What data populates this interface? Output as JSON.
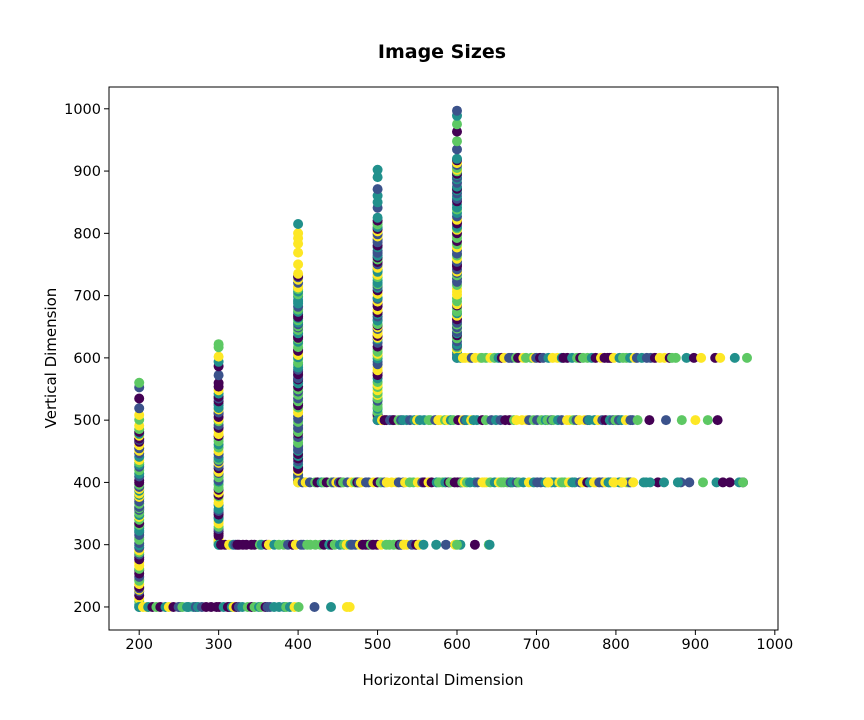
{
  "chart_data": {
    "type": "scatter",
    "title": "Image Sizes",
    "xlabel": "Horizontal Dimension",
    "ylabel": "Vertical Dimension",
    "xlim": [
      162,
      1004
    ],
    "ylim": [
      163,
      1035
    ],
    "xticks": [
      200,
      300,
      400,
      500,
      600,
      700,
      800,
      900,
      1000
    ],
    "yticks": [
      200,
      300,
      400,
      500,
      600,
      700,
      800,
      900,
      1000
    ],
    "grid": false,
    "legend": "none",
    "colormap": [
      "#440154",
      "#3b528b",
      "#21908c",
      "#5dc863",
      "#fde725"
    ],
    "groups": [
      {
        "base": 200,
        "vertical_max": 560,
        "horizontal_max": 465
      },
      {
        "base": 300,
        "vertical_max": 622,
        "horizontal_max": 640
      },
      {
        "base": 400,
        "vertical_max": 815,
        "horizontal_max": 960
      },
      {
        "base": 500,
        "vertical_max": 902,
        "horizontal_max": 928
      },
      {
        "base": 600,
        "vertical_max": 997,
        "horizontal_max": 965
      }
    ],
    "outliers": [
      {
        "x": 600,
        "y": 300
      },
      {
        "x": 641,
        "y": 300
      },
      {
        "x": 715,
        "y": 400
      },
      {
        "x": 797,
        "y": 400
      },
      {
        "x": 808,
        "y": 400
      },
      {
        "x": 838,
        "y": 400
      },
      {
        "x": 843,
        "y": 400
      },
      {
        "x": 878,
        "y": 400
      },
      {
        "x": 960,
        "y": 400
      }
    ]
  }
}
